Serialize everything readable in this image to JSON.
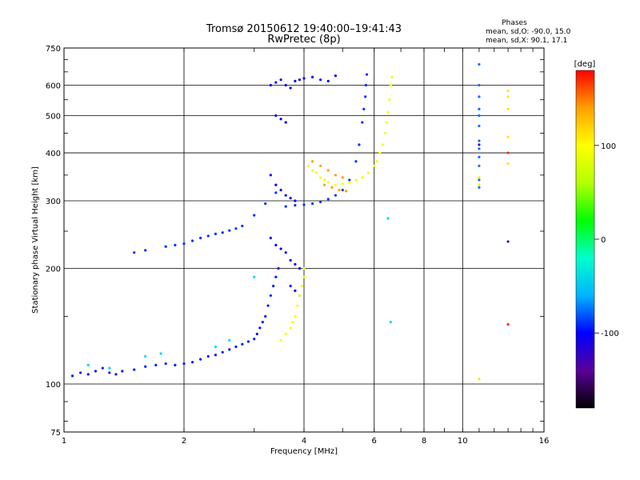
{
  "chart_data": {
    "type": "scatter",
    "title": "Tromsø 20150612 19:40:00–19:41:43",
    "subtitle": "RwPretec (8p)",
    "xlabel": "Frequency [MHz]",
    "ylabel": "Stationary phase Virtual Height [km]",
    "x_scale": "log",
    "y_scale": "log",
    "xlim": [
      1,
      16
    ],
    "ylim": [
      75,
      750
    ],
    "x_ticks": [
      1,
      2,
      4,
      6,
      8,
      10,
      16
    ],
    "y_ticks": [
      75,
      100,
      200,
      300,
      400,
      500,
      600,
      750
    ],
    "grid": true,
    "phase_info": {
      "title": "Phases",
      "line_o": "mean, sd,O: -90.0, 15.0",
      "line_x": "mean, sd,X:  90.1, 17.1"
    },
    "colorbar": {
      "label": "[deg]",
      "range": [
        -180,
        180
      ],
      "ticks": [
        100,
        0,
        -100
      ],
      "colors": [
        "#000000",
        "#5a0099",
        "#0000ff",
        "#00b4ff",
        "#00ffcc",
        "#00ff00",
        "#b4ff00",
        "#ffff00",
        "#ffa000",
        "#ff0000"
      ]
    },
    "series": [
      {
        "phase": -95,
        "points": [
          [
            1.05,
            105
          ],
          [
            1.1,
            107
          ],
          [
            1.15,
            106
          ],
          [
            1.2,
            108
          ],
          [
            1.25,
            110
          ],
          [
            1.3,
            107
          ],
          [
            1.35,
            106
          ],
          [
            1.4,
            108
          ],
          [
            1.5,
            109
          ],
          [
            1.6,
            111
          ],
          [
            1.7,
            112
          ],
          [
            1.8,
            113
          ],
          [
            1.9,
            112
          ],
          [
            2.0,
            113
          ],
          [
            2.1,
            114
          ],
          [
            2.2,
            116
          ],
          [
            2.3,
            118
          ],
          [
            2.4,
            119
          ],
          [
            2.5,
            121
          ],
          [
            2.6,
            123
          ],
          [
            2.7,
            125
          ],
          [
            2.8,
            127
          ],
          [
            2.9,
            129
          ],
          [
            3.0,
            131
          ],
          [
            3.05,
            135
          ],
          [
            3.1,
            140
          ],
          [
            3.15,
            145
          ],
          [
            3.2,
            150
          ],
          [
            3.25,
            160
          ],
          [
            3.3,
            170
          ],
          [
            3.35,
            180
          ],
          [
            3.4,
            190
          ],
          [
            3.45,
            200
          ]
        ]
      },
      {
        "phase": -90,
        "points": [
          [
            1.5,
            220
          ],
          [
            1.6,
            223
          ],
          [
            1.8,
            228
          ],
          [
            1.9,
            230
          ],
          [
            2.0,
            232
          ],
          [
            2.1,
            236
          ],
          [
            2.2,
            240
          ],
          [
            2.3,
            243
          ],
          [
            2.4,
            246
          ],
          [
            2.5,
            248
          ],
          [
            2.6,
            251
          ],
          [
            2.7,
            254
          ],
          [
            2.8,
            258
          ],
          [
            3.0,
            275
          ],
          [
            3.2,
            295
          ],
          [
            3.4,
            315
          ],
          [
            3.6,
            290
          ],
          [
            3.8,
            292
          ],
          [
            4.0,
            293
          ],
          [
            4.2,
            295
          ],
          [
            4.4,
            298
          ],
          [
            4.6,
            303
          ],
          [
            4.8,
            310
          ],
          [
            5.0,
            320
          ],
          [
            5.2,
            340
          ],
          [
            5.4,
            380
          ],
          [
            5.5,
            420
          ],
          [
            5.6,
            480
          ],
          [
            5.65,
            520
          ],
          [
            5.7,
            560
          ],
          [
            5.72,
            600
          ],
          [
            5.75,
            640
          ]
        ]
      },
      {
        "phase": -100,
        "points": [
          [
            3.3,
            600
          ],
          [
            3.4,
            610
          ],
          [
            3.5,
            620
          ],
          [
            3.6,
            600
          ],
          [
            3.7,
            590
          ],
          [
            3.8,
            615
          ],
          [
            3.9,
            620
          ],
          [
            4.0,
            625
          ],
          [
            4.2,
            630
          ],
          [
            4.4,
            620
          ],
          [
            4.6,
            615
          ],
          [
            4.8,
            635
          ],
          [
            3.4,
            500
          ],
          [
            3.5,
            490
          ],
          [
            3.6,
            480
          ],
          [
            3.3,
            350
          ],
          [
            3.4,
            330
          ],
          [
            3.5,
            320
          ],
          [
            3.6,
            310
          ],
          [
            3.7,
            305
          ],
          [
            3.8,
            300
          ],
          [
            3.3,
            240
          ],
          [
            3.4,
            230
          ],
          [
            3.5,
            225
          ],
          [
            3.6,
            220
          ],
          [
            3.7,
            210
          ],
          [
            3.8,
            205
          ],
          [
            3.9,
            200
          ],
          [
            3.7,
            180
          ],
          [
            3.8,
            175
          ],
          [
            3.9,
            170
          ]
        ]
      },
      {
        "phase": 95,
        "points": [
          [
            3.5,
            130
          ],
          [
            3.6,
            135
          ],
          [
            3.7,
            140
          ],
          [
            3.75,
            145
          ],
          [
            3.8,
            150
          ],
          [
            3.85,
            160
          ],
          [
            3.9,
            170
          ],
          [
            3.95,
            180
          ],
          [
            4.0,
            190
          ],
          [
            4.0,
            200
          ],
          [
            4.1,
            370
          ],
          [
            4.2,
            360
          ],
          [
            4.3,
            355
          ],
          [
            4.4,
            345
          ],
          [
            4.5,
            340
          ],
          [
            4.6,
            335
          ],
          [
            4.8,
            330
          ],
          [
            5.0,
            332
          ],
          [
            5.2,
            335
          ],
          [
            5.4,
            340
          ],
          [
            5.6,
            345
          ],
          [
            5.8,
            355
          ],
          [
            6.0,
            370
          ],
          [
            6.1,
            380
          ],
          [
            6.2,
            400
          ],
          [
            6.3,
            420
          ],
          [
            6.4,
            450
          ],
          [
            6.45,
            480
          ],
          [
            6.5,
            510
          ],
          [
            6.55,
            550
          ],
          [
            6.6,
            600
          ],
          [
            6.65,
            630
          ]
        ]
      },
      {
        "phase": 140,
        "points": [
          [
            4.2,
            380
          ],
          [
            4.4,
            370
          ],
          [
            4.6,
            360
          ],
          [
            4.8,
            350
          ],
          [
            5.0,
            345
          ],
          [
            4.5,
            330
          ],
          [
            4.7,
            325
          ],
          [
            4.9,
            320
          ],
          [
            5.1,
            318
          ]
        ]
      },
      {
        "phase": -40,
        "points": [
          [
            1.15,
            112
          ],
          [
            1.3,
            110
          ],
          [
            1.6,
            118
          ],
          [
            1.75,
            120
          ],
          [
            2.4,
            125
          ],
          [
            2.6,
            130
          ],
          [
            3.0,
            190
          ],
          [
            6.6,
            145
          ],
          [
            6.5,
            270
          ]
        ]
      },
      {
        "phase": -75,
        "points": [
          [
            11.0,
            680
          ],
          [
            11.0,
            600
          ],
          [
            11.0,
            560
          ],
          [
            11.0,
            520
          ],
          [
            11.0,
            500
          ],
          [
            11.0,
            470
          ],
          [
            11.0,
            430
          ],
          [
            11.0,
            410
          ],
          [
            11.0,
            390
          ],
          [
            11.0,
            370
          ],
          [
            11.0,
            340
          ],
          [
            11.0,
            325
          ]
        ]
      },
      {
        "phase": 110,
        "points": [
          [
            13.0,
            580
          ],
          [
            13.0,
            560
          ],
          [
            13.0,
            520
          ],
          [
            13.0,
            440
          ],
          [
            13.0,
            375
          ],
          [
            11.0,
            345
          ],
          [
            11.0,
            330
          ],
          [
            11.0,
            103
          ]
        ]
      },
      {
        "phase": 170,
        "points": [
          [
            13.0,
            400
          ],
          [
            13.0,
            143
          ]
        ]
      },
      {
        "phase": -130,
        "points": [
          [
            13.0,
            235
          ],
          [
            11.0,
            420
          ]
        ]
      }
    ]
  }
}
